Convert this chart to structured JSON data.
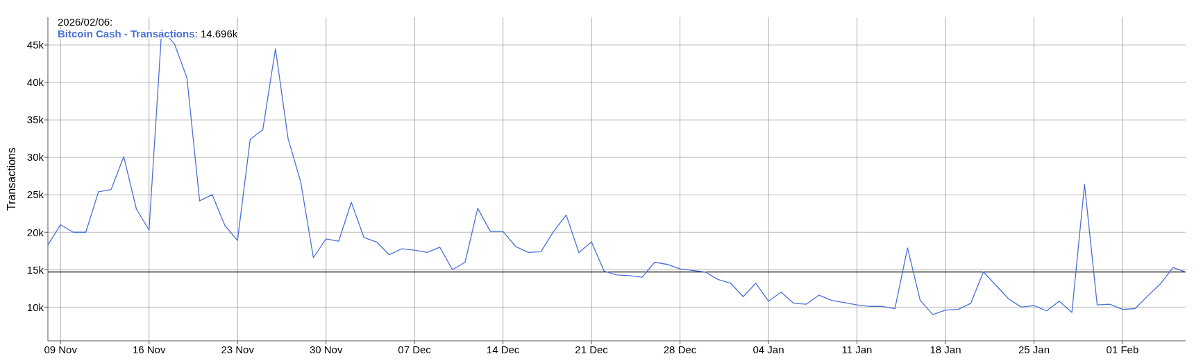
{
  "chart_data": {
    "type": "line",
    "ylabel": "Transactions",
    "x": [
      "2025-11-08",
      "2025-11-09",
      "2025-11-10",
      "2025-11-11",
      "2025-11-12",
      "2025-11-13",
      "2025-11-14",
      "2025-11-15",
      "2025-11-16",
      "2025-11-17",
      "2025-11-18",
      "2025-11-19",
      "2025-11-20",
      "2025-11-21",
      "2025-11-22",
      "2025-11-23",
      "2025-11-24",
      "2025-11-25",
      "2025-11-26",
      "2025-11-27",
      "2025-11-28",
      "2025-11-29",
      "2025-11-30",
      "2025-12-01",
      "2025-12-02",
      "2025-12-03",
      "2025-12-04",
      "2025-12-05",
      "2025-12-06",
      "2025-12-07",
      "2025-12-08",
      "2025-12-09",
      "2025-12-10",
      "2025-12-11",
      "2025-12-12",
      "2025-12-13",
      "2025-12-14",
      "2025-12-15",
      "2025-12-16",
      "2025-12-17",
      "2025-12-18",
      "2025-12-19",
      "2025-12-20",
      "2025-12-21",
      "2025-12-22",
      "2025-12-23",
      "2025-12-24",
      "2025-12-25",
      "2025-12-26",
      "2025-12-27",
      "2025-12-28",
      "2025-12-29",
      "2025-12-30",
      "2025-12-31",
      "2026-01-01",
      "2026-01-02",
      "2026-01-03",
      "2026-01-04",
      "2026-01-05",
      "2026-01-06",
      "2026-01-07",
      "2026-01-08",
      "2026-01-09",
      "2026-01-10",
      "2026-01-11",
      "2026-01-12",
      "2026-01-13",
      "2026-01-14",
      "2026-01-15",
      "2026-01-16",
      "2026-01-17",
      "2026-01-18",
      "2026-01-19",
      "2026-01-20",
      "2026-01-21",
      "2026-01-22",
      "2026-01-23",
      "2026-01-24",
      "2026-01-25",
      "2026-01-26",
      "2026-01-27",
      "2026-01-28",
      "2026-01-29",
      "2026-01-30",
      "2026-01-31",
      "2026-02-01",
      "2026-02-02",
      "2026-02-03",
      "2026-02-04",
      "2026-02-05",
      "2026-02-06"
    ],
    "series": [
      {
        "name": "Bitcoin Cash - Transactions",
        "color": "#4a70d8",
        "values": [
          18300,
          21000,
          20000,
          20000,
          25400,
          25700,
          30100,
          23100,
          20300,
          47000,
          45200,
          40600,
          24200,
          25000,
          20900,
          18900,
          32400,
          33700,
          44500,
          32500,
          26700,
          16600,
          19100,
          18800,
          24000,
          19300,
          18700,
          17000,
          17800,
          17600,
          17300,
          18000,
          15000,
          16000,
          23200,
          20100,
          20100,
          18100,
          17300,
          17400,
          20100,
          22300,
          17300,
          18700,
          14800,
          14300,
          14200,
          14000,
          16000,
          15700,
          15100,
          14900,
          14700,
          13700,
          13200,
          11400,
          13200,
          10800,
          12000,
          10500,
          10400,
          11600,
          10900,
          10600,
          10300,
          10100,
          10100,
          9800,
          17900,
          10900,
          9000,
          9600,
          9700,
          10500,
          14700,
          12900,
          11100,
          10000,
          10200,
          9500,
          10800,
          9300,
          26400,
          10300,
          10400,
          9700,
          9800,
          11500,
          13100,
          15300,
          14696
        ]
      }
    ],
    "xlim": [
      "2025-11-08",
      "2026-02-06"
    ],
    "xticks": [
      {
        "value": "2025-11-09",
        "label": "09 Nov"
      },
      {
        "value": "2025-11-16",
        "label": "16 Nov"
      },
      {
        "value": "2025-11-23",
        "label": "23 Nov"
      },
      {
        "value": "2025-11-30",
        "label": "30 Nov"
      },
      {
        "value": "2025-12-07",
        "label": "07 Dec"
      },
      {
        "value": "2025-12-14",
        "label": "14 Dec"
      },
      {
        "value": "2025-12-21",
        "label": "21 Dec"
      },
      {
        "value": "2025-12-28",
        "label": "28 Dec"
      },
      {
        "value": "2026-01-04",
        "label": "04 Jan"
      },
      {
        "value": "2026-01-11",
        "label": "11 Jan"
      },
      {
        "value": "2026-01-18",
        "label": "18 Jan"
      },
      {
        "value": "2026-01-25",
        "label": "25 Jan"
      },
      {
        "value": "2026-02-01",
        "label": "01 Feb"
      }
    ],
    "ylim": [
      5500,
      48700
    ],
    "yticks": [
      {
        "value": 10000,
        "label": "10k"
      },
      {
        "value": 15000,
        "label": "15k"
      },
      {
        "value": 20000,
        "label": "20k"
      },
      {
        "value": 25000,
        "label": "25k"
      },
      {
        "value": 30000,
        "label": "30k"
      },
      {
        "value": 35000,
        "label": "35k"
      },
      {
        "value": 40000,
        "label": "40k"
      },
      {
        "value": 45000,
        "label": "45k"
      }
    ],
    "ref_lines": [
      {
        "axis": "y",
        "value": 14696,
        "color": "#000000"
      }
    ],
    "annotations": [
      "2026/02/06:",
      ": 14.696k"
    ],
    "legend": "top left",
    "grid": true,
    "marker": "none",
    "line_style": "solid"
  }
}
